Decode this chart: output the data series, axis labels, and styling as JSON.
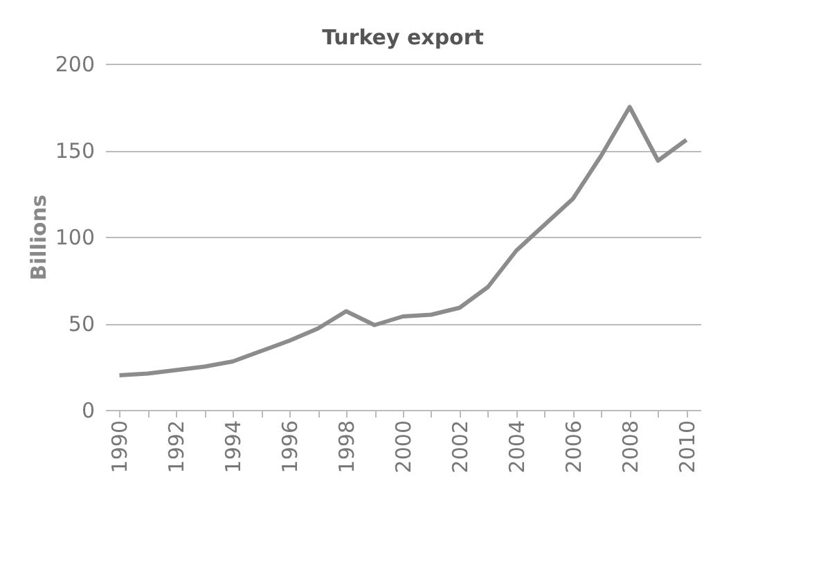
{
  "chart_data": {
    "type": "line",
    "title": "Turkey export",
    "ylabel": "Billions",
    "categories": [
      "1990",
      null,
      "1992",
      null,
      "1994",
      null,
      "1996",
      null,
      "1998",
      null,
      "2000",
      null,
      "2002",
      null,
      "2004",
      null,
      "2006",
      null,
      "2008",
      null,
      "2010"
    ],
    "series": [
      {
        "color": "#8c8c8c",
        "values": [
          20,
          21,
          23,
          25,
          28,
          34,
          40,
          47,
          57,
          49,
          54,
          55,
          59,
          71,
          92,
          107,
          122,
          147,
          175,
          144,
          156
        ]
      }
    ],
    "ylim": [
      0,
      200
    ],
    "yticks": [
      0,
      50,
      100,
      150,
      200
    ],
    "grid": "y",
    "legend": false,
    "marker": "none",
    "line_style": "solid"
  }
}
